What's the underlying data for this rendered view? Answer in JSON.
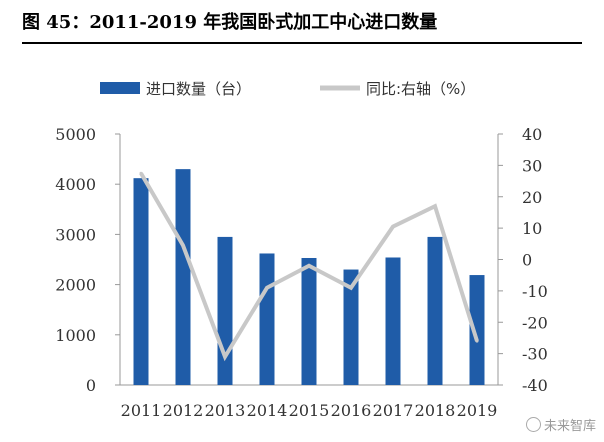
{
  "title": "图 45：2011-2019 年我国卧式加工中心进口数量",
  "watermark": "未来智库",
  "chart_data": {
    "type": "bar",
    "categories": [
      "2011",
      "2012",
      "2013",
      "2014",
      "2015",
      "2016",
      "2017",
      "2018",
      "2019"
    ],
    "series": [
      {
        "name": "进口数量（台）",
        "type": "bar",
        "axis": "left",
        "values": [
          4120,
          4300,
          2950,
          2620,
          2530,
          2300,
          2540,
          2950,
          2190
        ],
        "color": "#1f5ca8"
      },
      {
        "name": "同比:右轴（%）",
        "type": "line",
        "axis": "right",
        "values": [
          27.5,
          4.5,
          -31,
          -9,
          -2,
          -9,
          10.5,
          17,
          -26
        ],
        "color": "#c8c8c8"
      }
    ],
    "y_left": {
      "min": 0,
      "max": 5000,
      "ticks": [
        0,
        1000,
        2000,
        3000,
        4000,
        5000
      ]
    },
    "y_right": {
      "min": -40,
      "max": 40,
      "ticks": [
        -40,
        -30,
        -20,
        -10,
        0,
        10,
        20,
        30,
        40
      ]
    },
    "legend_position": "top",
    "grid": false
  }
}
